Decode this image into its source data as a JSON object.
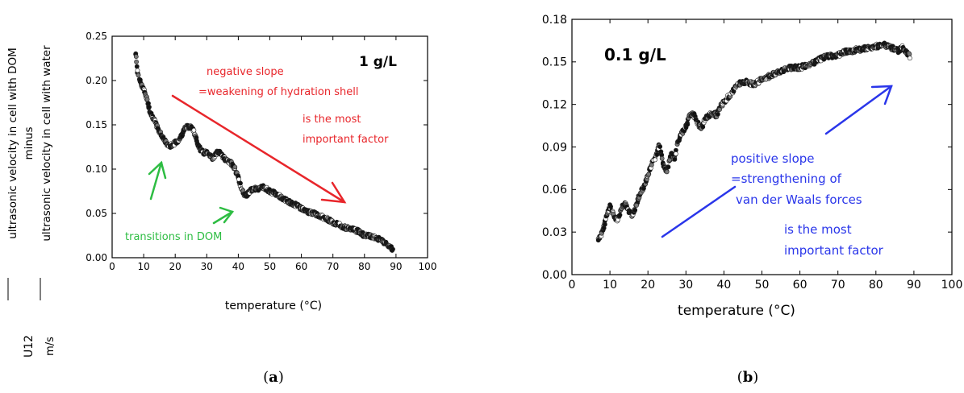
{
  "captions": {
    "a_open": "(",
    "a_letter": "a",
    "a_close": ")",
    "b_open": "(",
    "b_letter": "b",
    "b_close": ")"
  },
  "chart_data": [
    {
      "type": "scatter",
      "title": "",
      "xlabel": "temperature (°C)",
      "ylabel_lines": [
        "ultrasonic velocity in cell with DOM",
        "minus",
        "ultrasonic velocity in cell with water"
      ],
      "ylabel_side": [
        "U12",
        "m/s"
      ],
      "xlim": [
        0,
        100
      ],
      "ylim": [
        0,
        0.25
      ],
      "xticks": [
        0,
        10,
        20,
        30,
        40,
        50,
        60,
        70,
        80,
        90,
        100
      ],
      "yticks": [
        "0.00",
        "0.05",
        "0.10",
        "0.15",
        "0.20",
        "0.25"
      ],
      "grid": false,
      "concentration_label": "1 g/L",
      "series": [
        {
          "curve": [
            [
              7.5,
              0.23
            ],
            [
              8,
              0.21
            ],
            [
              9,
              0.198
            ],
            [
              10,
              0.19
            ],
            [
              11,
              0.18
            ],
            [
              12,
              0.165
            ],
            [
              13,
              0.158
            ],
            [
              14,
              0.15
            ],
            [
              15,
              0.142
            ],
            [
              16,
              0.137
            ],
            [
              17,
              0.13
            ],
            [
              18,
              0.126
            ],
            [
              19,
              0.127
            ],
            [
              20,
              0.13
            ],
            [
              21,
              0.132
            ],
            [
              22,
              0.138
            ],
            [
              23,
              0.146
            ],
            [
              24,
              0.148
            ],
            [
              25,
              0.148
            ],
            [
              26,
              0.142
            ],
            [
              27,
              0.13
            ],
            [
              28,
              0.122
            ],
            [
              29,
              0.118
            ],
            [
              30,
              0.12
            ],
            [
              31,
              0.116
            ],
            [
              32,
              0.112
            ],
            [
              33,
              0.118
            ],
            [
              34,
              0.12
            ],
            [
              35,
              0.115
            ],
            [
              36,
              0.11
            ],
            [
              37,
              0.108
            ],
            [
              38,
              0.106
            ],
            [
              39,
              0.1
            ],
            [
              40,
              0.09
            ],
            [
              41,
              0.078
            ],
            [
              42,
              0.07
            ],
            [
              43,
              0.072
            ],
            [
              44,
              0.076
            ],
            [
              45,
              0.078
            ],
            [
              46,
              0.077
            ],
            [
              47,
              0.079
            ],
            [
              48,
              0.08
            ],
            [
              50,
              0.075
            ],
            [
              52,
              0.072
            ],
            [
              54,
              0.067
            ],
            [
              56,
              0.063
            ],
            [
              58,
              0.06
            ],
            [
              60,
              0.056
            ],
            [
              62,
              0.052
            ],
            [
              64,
              0.05
            ],
            [
              66,
              0.047
            ],
            [
              68,
              0.044
            ],
            [
              70,
              0.04
            ],
            [
              72,
              0.037
            ],
            [
              74,
              0.034
            ],
            [
              76,
              0.032
            ],
            [
              78,
              0.03
            ],
            [
              80,
              0.025
            ],
            [
              82,
              0.024
            ],
            [
              84,
              0.022
            ],
            [
              86,
              0.018
            ],
            [
              88,
              0.012
            ],
            [
              89,
              0.009
            ]
          ]
        }
      ],
      "annotations": {
        "red_lines": [
          "negative slope",
          "=weakening of hydration shell",
          "is the most",
          "important factor"
        ],
        "green": "transitions in DOM",
        "red_color": "#e8262b",
        "green_color": "#2ebd43"
      }
    },
    {
      "type": "scatter",
      "title": "",
      "xlabel": "temperature (°C)",
      "xlim": [
        0,
        100
      ],
      "ylim": [
        0,
        0.18
      ],
      "xticks": [
        0,
        10,
        20,
        30,
        40,
        50,
        60,
        70,
        80,
        90,
        100
      ],
      "yticks": [
        "0.00",
        "0.03",
        "0.06",
        "0.09",
        "0.12",
        "0.15",
        "0.18"
      ],
      "grid": false,
      "concentration_label": "0.1 g/L",
      "series": [
        {
          "curve": [
            [
              7,
              0.024
            ],
            [
              8,
              0.03
            ],
            [
              9,
              0.04
            ],
            [
              10,
              0.048
            ],
            [
              11,
              0.042
            ],
            [
              12,
              0.038
            ],
            [
              13,
              0.047
            ],
            [
              14,
              0.05
            ],
            [
              15,
              0.044
            ],
            [
              16,
              0.042
            ],
            [
              17,
              0.05
            ],
            [
              18,
              0.058
            ],
            [
              19,
              0.062
            ],
            [
              20,
              0.07
            ],
            [
              21,
              0.078
            ],
            [
              22,
              0.082
            ],
            [
              23,
              0.092
            ],
            [
              24,
              0.078
            ],
            [
              25,
              0.072
            ],
            [
              26,
              0.085
            ],
            [
              27,
              0.082
            ],
            [
              28,
              0.095
            ],
            [
              29,
              0.1
            ],
            [
              30,
              0.104
            ],
            [
              31,
              0.112
            ],
            [
              32,
              0.113
            ],
            [
              33,
              0.108
            ],
            [
              34,
              0.102
            ],
            [
              35,
              0.11
            ],
            [
              36,
              0.112
            ],
            [
              37,
              0.114
            ],
            [
              38,
              0.112
            ],
            [
              39,
              0.118
            ],
            [
              40,
              0.122
            ],
            [
              42,
              0.128
            ],
            [
              44,
              0.135
            ],
            [
              46,
              0.136
            ],
            [
              48,
              0.134
            ],
            [
              50,
              0.138
            ],
            [
              52,
              0.14
            ],
            [
              54,
              0.142
            ],
            [
              56,
              0.145
            ],
            [
              58,
              0.146
            ],
            [
              60,
              0.146
            ],
            [
              62,
              0.148
            ],
            [
              64,
              0.15
            ],
            [
              66,
              0.153
            ],
            [
              68,
              0.154
            ],
            [
              70,
              0.155
            ],
            [
              72,
              0.157
            ],
            [
              74,
              0.158
            ],
            [
              76,
              0.159
            ],
            [
              78,
              0.16
            ],
            [
              80,
              0.161
            ],
            [
              82,
              0.162
            ],
            [
              84,
              0.16
            ],
            [
              86,
              0.158
            ],
            [
              87,
              0.16
            ],
            [
              88,
              0.157
            ],
            [
              89,
              0.154
            ]
          ]
        }
      ],
      "annotations": {
        "blue_lines": [
          "positive slope",
          "=strengthening of",
          "van der Waals forces",
          "is the most",
          "important factor"
        ],
        "blue_color": "#2a36ea"
      }
    }
  ]
}
